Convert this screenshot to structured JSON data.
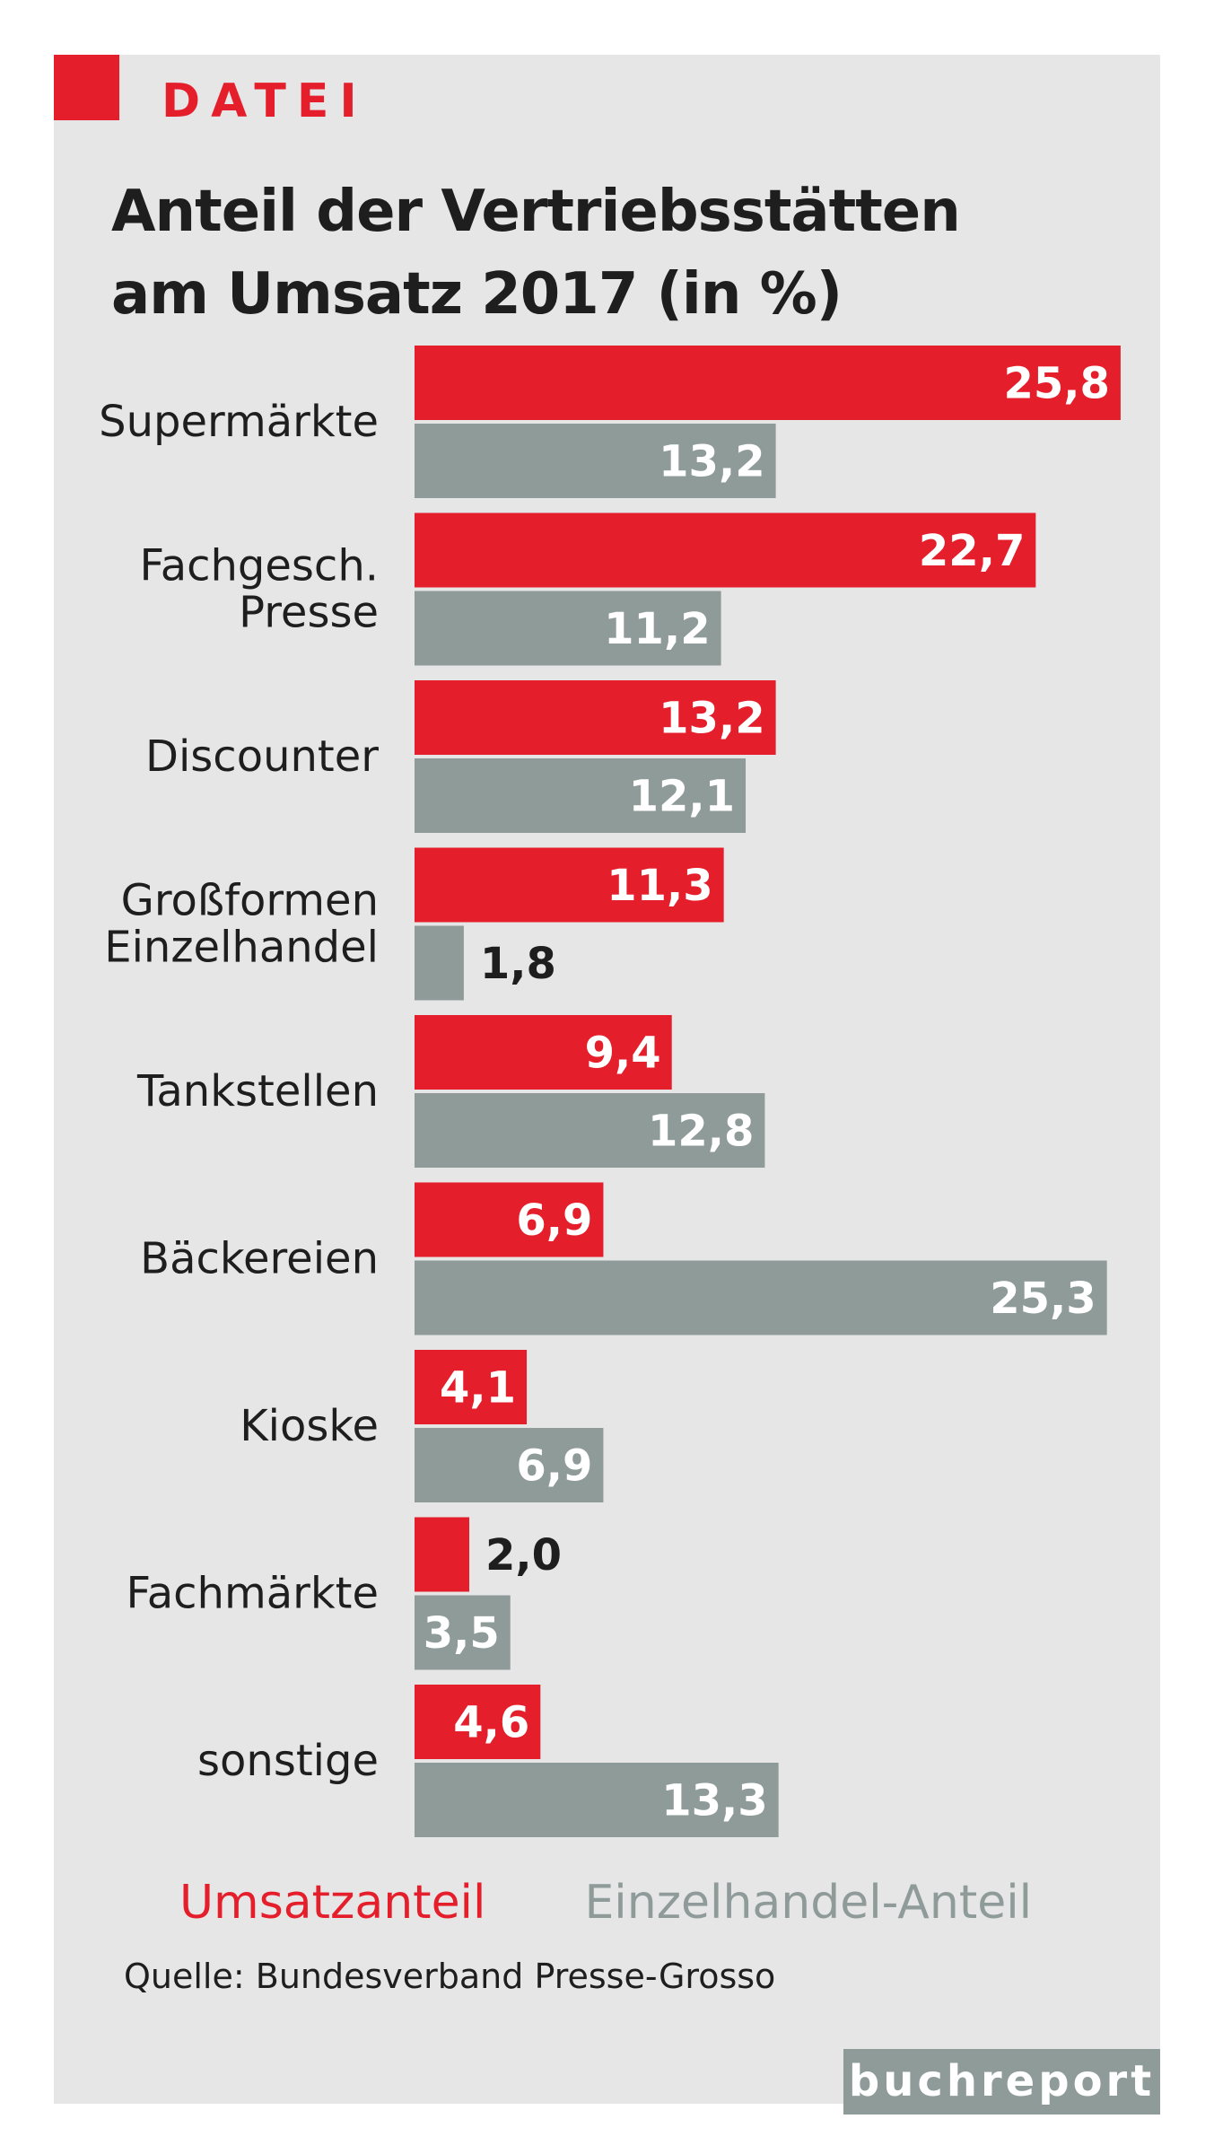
{
  "header": {
    "kicker": "DATEI",
    "title_line1": "Anteil der Vertriebsstätten",
    "title_line2": "am Umsatz 2017 (in %)"
  },
  "colors": {
    "accent_red": "#e41f2b",
    "series_gray": "#8f9b99",
    "panel_bg": "#e6e6e6",
    "text_dark": "#1e1e1e"
  },
  "chart_data": {
    "type": "bar",
    "orientation": "horizontal",
    "title": "Anteil der Vertriebsstätten am Umsatz 2017 (in %)",
    "categories": [
      [
        "Supermärkte"
      ],
      [
        "Fachgesch.",
        "Presse"
      ],
      [
        "Discounter"
      ],
      [
        "Großformen",
        "Einzelhandel"
      ],
      [
        "Tankstellen"
      ],
      [
        "Bäckereien"
      ],
      [
        "Kioske"
      ],
      [
        "Fachmärkte"
      ],
      [
        "sonstige"
      ]
    ],
    "series": [
      {
        "name": "Umsatzanteil",
        "color": "#e41f2b",
        "values": [
          25.8,
          22.7,
          13.2,
          11.3,
          9.4,
          6.9,
          4.1,
          2.0,
          4.6
        ]
      },
      {
        "name": "Einzelhandel-Anteil",
        "color": "#8f9b99",
        "values": [
          13.2,
          11.2,
          12.1,
          1.8,
          12.8,
          25.3,
          6.9,
          3.5,
          13.3
        ]
      }
    ],
    "value_labels": [
      [
        "25,8",
        "22,7",
        "13,2",
        "11,3",
        "9,4",
        "6,9",
        "4,1",
        "2,0",
        "4,6"
      ],
      [
        "13,2",
        "11,2",
        "12,1",
        "1,8",
        "12,8",
        "25,3",
        "6,9",
        "3,5",
        "13,3"
      ]
    ],
    "xlim": [
      0,
      26
    ],
    "grid": false,
    "legend": "bottom"
  },
  "legend": {
    "item1": "Umsatzanteil",
    "item2": "Einzelhandel-Anteil"
  },
  "source": "Quelle: Bundesverband Presse-Grosso",
  "brand": "buchreport"
}
